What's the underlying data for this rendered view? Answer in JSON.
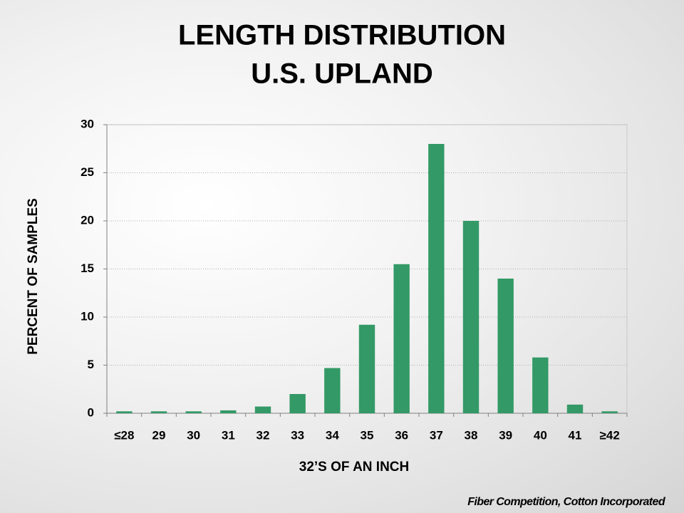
{
  "chart_data": {
    "type": "bar",
    "title": "LENGTH DISTRIBUTION",
    "subtitle": "U.S. UPLAND",
    "x_label": "32’S OF AN INCH",
    "y_label": "PERCENT OF SAMPLES",
    "source": "Fiber Competition, Cotton Incorporated",
    "categories": [
      "≤28",
      "29",
      "30",
      "31",
      "32",
      "33",
      "34",
      "35",
      "36",
      "37",
      "38",
      "39",
      "40",
      "41",
      "≥42"
    ],
    "values": [
      0.2,
      0.2,
      0.2,
      0.3,
      0.7,
      2.0,
      4.7,
      9.2,
      15.5,
      28,
      20,
      14,
      5.8,
      0.9,
      0.2
    ],
    "color": "#339966",
    "ylim": [
      0,
      30
    ],
    "yticks": [
      0,
      5,
      10,
      15,
      20,
      25,
      30
    ],
    "grid": true
  }
}
